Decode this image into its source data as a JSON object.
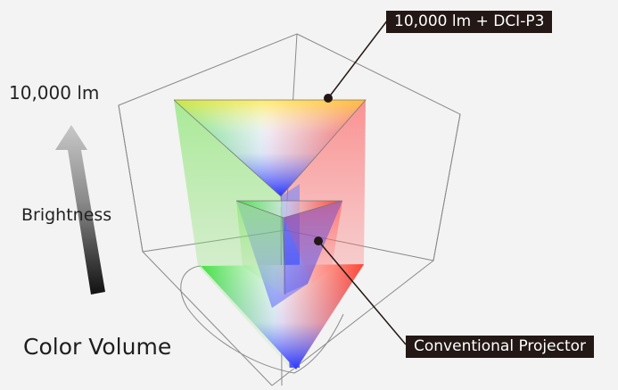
{
  "labels": {
    "top_value": "10,000 lm",
    "axis_label": "Brightness",
    "title": "Color Volume",
    "callout_large": "10,000 lm + DCI-P3",
    "callout_small": "Conventional Projector"
  },
  "colors": {
    "background": "#f3f3f3",
    "callout_bg": "#231815",
    "callout_text": "#ffffff",
    "wireframe": "#8a8a8a"
  }
}
